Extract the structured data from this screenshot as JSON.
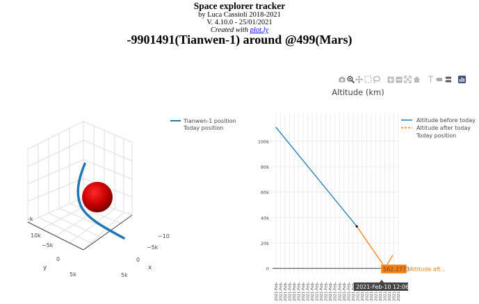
{
  "header": {
    "title": "Space explorer tracker",
    "author": "by Luca Cassioli 2018-2021",
    "version": "V. 4.10.0 - 25/01/2021",
    "created_prefix": "Created with ",
    "created_link": "plot.ly",
    "subtitle": "-9901491(Tianwen-1) around @499(Mars)"
  },
  "modebar": {
    "icons": [
      "camera-icon",
      "zoom-icon",
      "pan-icon",
      "box-select-icon",
      "lasso-icon",
      "zoom-in-icon",
      "zoom-out-icon",
      "autoscale-icon",
      "reset-axes-icon",
      "spike-lines-icon",
      "hover-closest-icon",
      "hover-compare-icon",
      "plotly-logo-icon"
    ]
  },
  "scene3d": {
    "legend": [
      "Tianwen-1 position",
      "Today position"
    ],
    "axis_labels": {
      "x": "x",
      "y": "y"
    },
    "ticks": {
      "y_axis": [
        "5k",
        "0",
        "−5k",
        "10k",
        "-k"
      ],
      "x_axis": [
        "5k",
        "0",
        "−5k",
        "−10"
      ]
    },
    "colors": {
      "trajectory": "#1f77b4",
      "planet": "#c80000"
    }
  },
  "chart_data": {
    "type": "line",
    "title": "Altitude (km)",
    "xlabel": "",
    "ylabel": "",
    "ylim": [
      -4000,
      122000
    ],
    "y_ticks": [
      "0",
      "20k",
      "40k",
      "60k",
      "80k",
      "100k"
    ],
    "x_tick_label": "2021-Feb-",
    "series": [
      {
        "name": "Altitude before today",
        "color": "#1f77b4",
        "x": [
          0,
          0.74
        ],
        "values": [
          111000,
          33000
        ]
      },
      {
        "name": "Altitude after today",
        "color": "#ff7f0e",
        "x": [
          0.74,
          1.0
        ],
        "values": [
          33000,
          562.2773
        ]
      }
    ],
    "extra_x": [
      1.0,
      1.07
    ],
    "extra_values": [
      562.2773,
      10500
    ],
    "legend": [
      "Altitude before today",
      "Altitude after today",
      "Today position"
    ],
    "hover": {
      "x_label": "2021-Feb-10 12:06:00",
      "y_value": "562.2773",
      "name": "Altitude aft..."
    }
  }
}
